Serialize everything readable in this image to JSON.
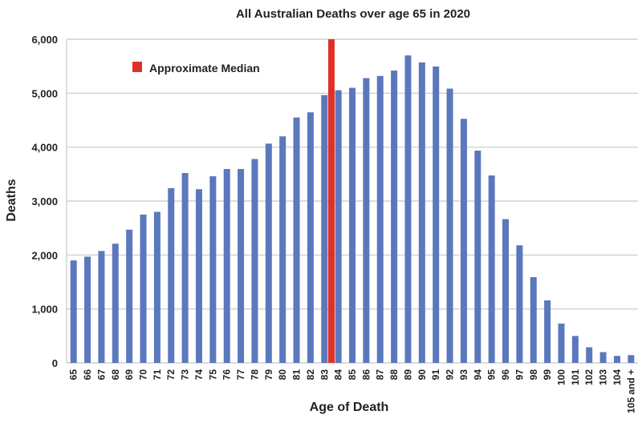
{
  "chart_data": {
    "type": "bar",
    "title": "All Australian Deaths over age 65 in 2020",
    "xlabel": "Age of Death",
    "ylabel": "Deaths",
    "ylim": [
      0,
      6000
    ],
    "yticks": [
      0,
      1000,
      2000,
      3000,
      4000,
      5000,
      6000
    ],
    "ytick_labels": [
      "0",
      "1,000",
      "2,000",
      "3,000",
      "4,000",
      "5,000",
      "6,000"
    ],
    "grid": true,
    "categories": [
      "65",
      "66",
      "67",
      "68",
      "69",
      "70",
      "71",
      "72",
      "73",
      "74",
      "75",
      "76",
      "77",
      "78",
      "79",
      "80",
      "81",
      "82",
      "83",
      "84",
      "85",
      "86",
      "87",
      "88",
      "89",
      "90",
      "91",
      "92",
      "93",
      "94",
      "95",
      "96",
      "97",
      "98",
      "99",
      "100",
      "101",
      "102",
      "103",
      "104",
      "105 and +"
    ],
    "values": [
      1900,
      1970,
      2075,
      2210,
      2470,
      2750,
      2800,
      3240,
      3520,
      3220,
      3460,
      3595,
      3595,
      3780,
      4065,
      4200,
      4550,
      4645,
      4965,
      5055,
      5100,
      5280,
      5320,
      5420,
      5700,
      5570,
      5495,
      5085,
      4525,
      3935,
      3475,
      2665,
      2180,
      1590,
      1160,
      730,
      500,
      290,
      200,
      130,
      145
    ],
    "bar_color": "#5b78bd",
    "median_marker": {
      "label": "Approximate Median",
      "between": [
        "83",
        "84"
      ],
      "color": "#e03127"
    },
    "legend": {
      "placement": "top-left",
      "entries": [
        "Approximate Median"
      ]
    }
  }
}
